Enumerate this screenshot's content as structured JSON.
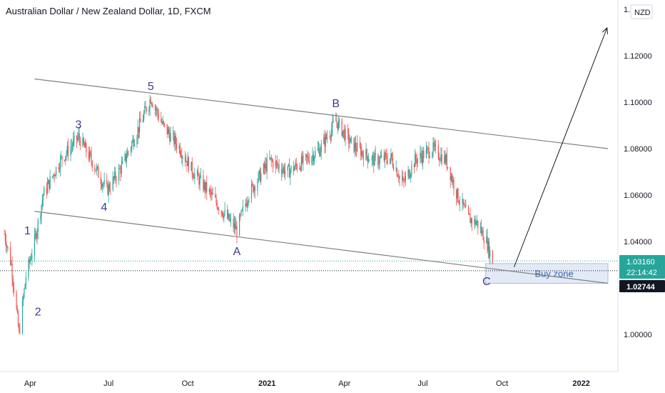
{
  "title": "Australian Dollar / New Zealand Dollar, 1D, FXCM",
  "currency_badge": "NZD",
  "price_axis": {
    "ticks": [
      "1.14000",
      "1.12000",
      "1.10000",
      "1.08000",
      "1.06000",
      "1.04000",
      "1.00000"
    ],
    "current_price": "1.03160",
    "countdown": "22:14:42",
    "level_price": "1.02744"
  },
  "time_axis": {
    "ticks": [
      "Apr",
      "Jul",
      "Oct",
      "2021",
      "Apr",
      "Jul",
      "Oct",
      "2022"
    ]
  },
  "annotations": {
    "wave_labels": [
      "1",
      "2",
      "3",
      "4",
      "5",
      "A",
      "B",
      "C"
    ],
    "zone_label": "Buy zone"
  },
  "colors": {
    "up": "#26a69a",
    "down": "#ef5350",
    "wave_text": "#3e3a8f",
    "trendline": "#808080",
    "zone_fill": "#e3eaf6",
    "zone_border": "#a7bde3",
    "price_badge": "#26a69a",
    "level_badge": "#131722"
  },
  "chart_data": {
    "type": "candlestick",
    "x_range": [
      "2020-02",
      "2022-02"
    ],
    "ylim": [
      0.985,
      1.145
    ],
    "series": [
      {
        "values": [
          {
            "date": "2020-03-01",
            "close": 1.045
          },
          {
            "date": "2020-03-10",
            "close": 1.03
          },
          {
            "date": "2020-03-19",
            "close": 1.0
          },
          {
            "date": "2020-03-27",
            "close": 1.025
          },
          {
            "date": "2020-04-06",
            "close": 1.04
          },
          {
            "date": "2020-04-16",
            "close": 1.06
          },
          {
            "date": "2020-05-06",
            "close": 1.075
          },
          {
            "date": "2020-05-27",
            "close": 1.085
          },
          {
            "date": "2020-06-11",
            "close": 1.075
          },
          {
            "date": "2020-06-29",
            "close": 1.062
          },
          {
            "date": "2020-07-16",
            "close": 1.072
          },
          {
            "date": "2020-08-06",
            "close": 1.09
          },
          {
            "date": "2020-08-19",
            "close": 1.102
          },
          {
            "date": "2020-09-02",
            "close": 1.09
          },
          {
            "date": "2020-09-22",
            "close": 1.08
          },
          {
            "date": "2020-10-07",
            "close": 1.07
          },
          {
            "date": "2020-10-28",
            "close": 1.06
          },
          {
            "date": "2020-11-16",
            "close": 1.05
          },
          {
            "date": "2020-11-27",
            "close": 1.045
          },
          {
            "date": "2020-12-10",
            "close": 1.06
          },
          {
            "date": "2021-01-04",
            "close": 1.075
          },
          {
            "date": "2021-01-25",
            "close": 1.07
          },
          {
            "date": "2021-02-15",
            "close": 1.075
          },
          {
            "date": "2021-03-04",
            "close": 1.08
          },
          {
            "date": "2021-03-22",
            "close": 1.092
          },
          {
            "date": "2021-04-09",
            "close": 1.082
          },
          {
            "date": "2021-05-04",
            "close": 1.075
          },
          {
            "date": "2021-05-25",
            "close": 1.076
          },
          {
            "date": "2021-06-08",
            "close": 1.065
          },
          {
            "date": "2021-06-22",
            "close": 1.075
          },
          {
            "date": "2021-07-12",
            "close": 1.08
          },
          {
            "date": "2021-07-28",
            "close": 1.075
          },
          {
            "date": "2021-08-10",
            "close": 1.06
          },
          {
            "date": "2021-08-23",
            "close": 1.05
          },
          {
            "date": "2021-09-02",
            "close": 1.048
          },
          {
            "date": "2021-09-13",
            "close": 1.04
          },
          {
            "date": "2021-09-20",
            "close": 1.0316
          }
        ]
      }
    ],
    "wave_points": [
      {
        "label": "1",
        "date": "2020-04-01",
        "price": 1.04
      },
      {
        "label": "2",
        "date": "2020-04-05",
        "price": 1.015
      },
      {
        "label": "3",
        "date": "2020-05-27",
        "price": 1.087
      },
      {
        "label": "4",
        "date": "2020-06-29",
        "price": 1.06
      },
      {
        "label": "5",
        "date": "2020-08-19",
        "price": 1.104
      },
      {
        "label": "A",
        "date": "2020-11-27",
        "price": 1.041
      },
      {
        "label": "B",
        "date": "2021-03-22",
        "price": 1.096
      },
      {
        "label": "C",
        "date": "2021-09-18",
        "price": 1.028
      }
    ],
    "trendlines": [
      {
        "from": {
          "date": "2020-04-06",
          "price": 1.11
        },
        "to": {
          "date": "2022-02-01",
          "price": 1.08
        }
      },
      {
        "from": {
          "date": "2020-04-06",
          "price": 1.053
        },
        "to": {
          "date": "2022-02-01",
          "price": 1.022
        }
      }
    ],
    "projection": {
      "from": {
        "date": "2021-10-15",
        "price": 1.029
      },
      "to": {
        "date": "2022-01-31",
        "price": 1.132
      }
    },
    "buy_zone": {
      "from": "2021-09-12",
      "to": "2022-02-01",
      "price_high": 1.0305,
      "price_low": 1.022
    },
    "current_price": 1.0316,
    "level_price": 1.02744
  }
}
